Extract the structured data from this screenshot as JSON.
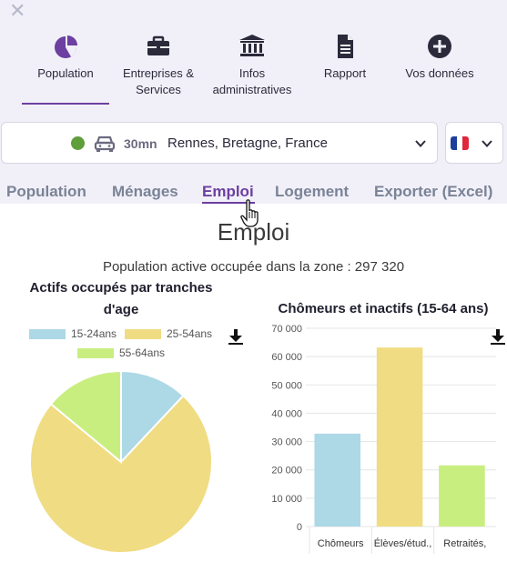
{
  "header": {
    "nav": [
      {
        "label": "Population",
        "icon": "pie-chart-icon",
        "active": true
      },
      {
        "label": "Entreprises & Services",
        "icon": "briefcase-icon"
      },
      {
        "label": "Infos administratives",
        "icon": "institution-icon"
      },
      {
        "label": "Rapport",
        "icon": "document-icon"
      },
      {
        "label": "Vos données",
        "icon": "plus-circle-icon"
      }
    ]
  },
  "location": {
    "time": "30mn",
    "place": "Rennes, Bretagne, France",
    "status_color": "#5f9e3a",
    "transport_icon": "car-icon"
  },
  "tabs": [
    {
      "label": "Population"
    },
    {
      "label": "Ménages"
    },
    {
      "label": "Emploi",
      "active": true
    },
    {
      "label": "Logement"
    },
    {
      "label": "Exporter (Excel)"
    }
  ],
  "page": {
    "title": "Emploi",
    "subtitle": "Population active occupée dans la zone : 297 320"
  },
  "colors": {
    "accent": "#6c3fa0",
    "blue": "#add8e6",
    "yellow": "#f0dc82",
    "green": "#c9ee80"
  },
  "chart_data": [
    {
      "type": "pie",
      "title_line1": "Actifs occupés par tranches",
      "title_line2": "d'age",
      "legend": [
        "15-24ans",
        "25-54ans",
        "55-64ans"
      ],
      "values": [
        12,
        74,
        14
      ],
      "colors": [
        "#add8e6",
        "#f0dc82",
        "#c9ee80"
      ]
    },
    {
      "type": "bar",
      "title": "Chômeurs et inactifs (15-64 ans)",
      "categories": [
        "Chômeurs",
        "Élèves/étud.,",
        "Retraités,"
      ],
      "values": [
        32800,
        63200,
        21600
      ],
      "colors": [
        "#add8e6",
        "#f0dc82",
        "#c9ee80"
      ],
      "ylim": [
        0,
        70000
      ],
      "yticks": [
        "0",
        "10 000",
        "20 000",
        "30 000",
        "40 000",
        "50 000",
        "60 000",
        "70 000"
      ]
    }
  ]
}
